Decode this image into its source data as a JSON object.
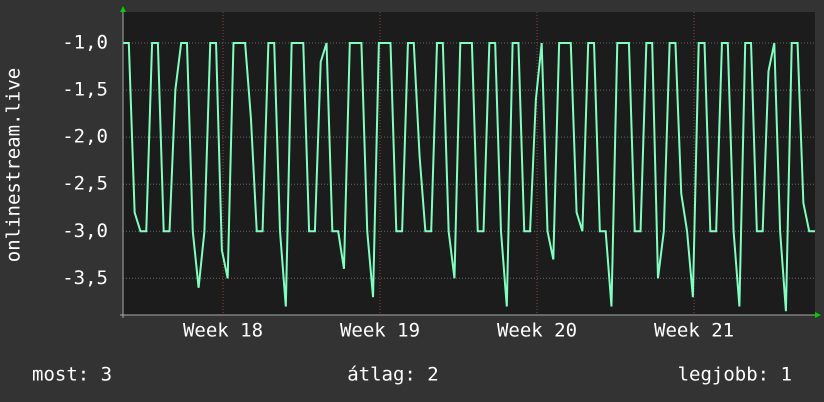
{
  "chart_data": {
    "type": "line",
    "y_label": "onlinestream.live",
    "color": "#80ffbf",
    "values": [
      -1,
      -1,
      -2.8,
      -3,
      -3,
      -1,
      -1,
      -3,
      -3,
      -1.5,
      -1,
      -1,
      -3,
      -3.6,
      -3,
      -1,
      -1,
      -3.2,
      -3.5,
      -1,
      -1,
      -1,
      -1.8,
      -3,
      -3,
      -1,
      -1,
      -3,
      -3.8,
      -1,
      -1,
      -1,
      -3,
      -3,
      -1.2,
      -1,
      -3,
      -3,
      -3.4,
      -1,
      -1,
      -1,
      -3,
      -3.7,
      -1,
      -1,
      -1,
      -3,
      -3,
      -1,
      -1,
      -2.2,
      -3,
      -3,
      -1,
      -1,
      -3,
      -3.5,
      -1,
      -1,
      -1,
      -3,
      -3,
      -1,
      -1,
      -3,
      -3.8,
      -1,
      -1,
      -3,
      -3,
      -1.6,
      -1,
      -3,
      -3.3,
      -1,
      -1,
      -1,
      -2.8,
      -3,
      -1,
      -1,
      -3,
      -3,
      -3.8,
      -1,
      -1,
      -1,
      -3,
      -3,
      -1,
      -1,
      -3.5,
      -3,
      -1,
      -1,
      -2.6,
      -3,
      -3.7,
      -1,
      -1,
      -3,
      -3,
      -1,
      -1,
      -3,
      -3.8,
      -1,
      -1,
      -3,
      -3,
      -1.3,
      -1,
      -3,
      -3.85,
      -1,
      -1,
      -2.7,
      -3,
      -3
    ],
    "xlim": [
      0,
      119
    ],
    "xticks": [
      {
        "value": 17.2,
        "label": "Week 18"
      },
      {
        "value": 44.2,
        "label": "Week 19"
      },
      {
        "value": 71.2,
        "label": "Week 20"
      },
      {
        "value": 98.2,
        "label": "Week 21"
      }
    ],
    "ylim": [
      -3.89,
      -0.67
    ],
    "yticks": [
      {
        "value": -1,
        "label": "-1,0"
      },
      {
        "value": -1.5,
        "label": "-1,5"
      },
      {
        "value": -2,
        "label": "-2,0"
      },
      {
        "value": -2.5,
        "label": "-2,5"
      },
      {
        "value": -3,
        "label": "-3,0"
      },
      {
        "value": -3.5,
        "label": "-3,5"
      }
    ],
    "grid": true,
    "stats": [
      "most: 3",
      "átlag: 2",
      "legjobb: 1"
    ]
  }
}
